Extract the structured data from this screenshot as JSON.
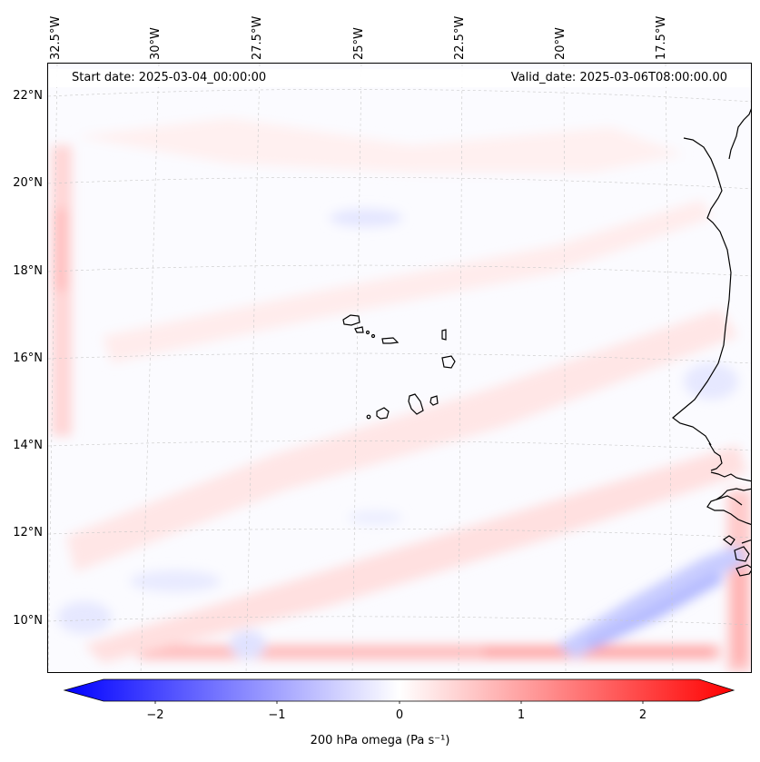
{
  "map": {
    "header": {
      "start_date": "Start date: 2025-03-04_00:00:00",
      "valid_date": "Valid_date: 2025-03-06T08:00:00.00"
    },
    "lon_labels": [
      "32.5°W",
      "30°W",
      "27.5°W",
      "25°W",
      "22.5°W",
      "20°W",
      "17.5°W"
    ],
    "lat_labels": [
      "22°N",
      "20°N",
      "18°N",
      "16°N",
      "14°N",
      "12°N",
      "10°N"
    ],
    "features": [
      "Cape Verde islands",
      "West African coastline"
    ]
  },
  "colorbar": {
    "label": "200 hPa omega (Pa s⁻¹)",
    "ticks": [
      "−2",
      "−1",
      "0",
      "1",
      "2"
    ],
    "low_color": "#0000ff",
    "mid_color": "#ffffff",
    "high_color": "#ff0000"
  }
}
